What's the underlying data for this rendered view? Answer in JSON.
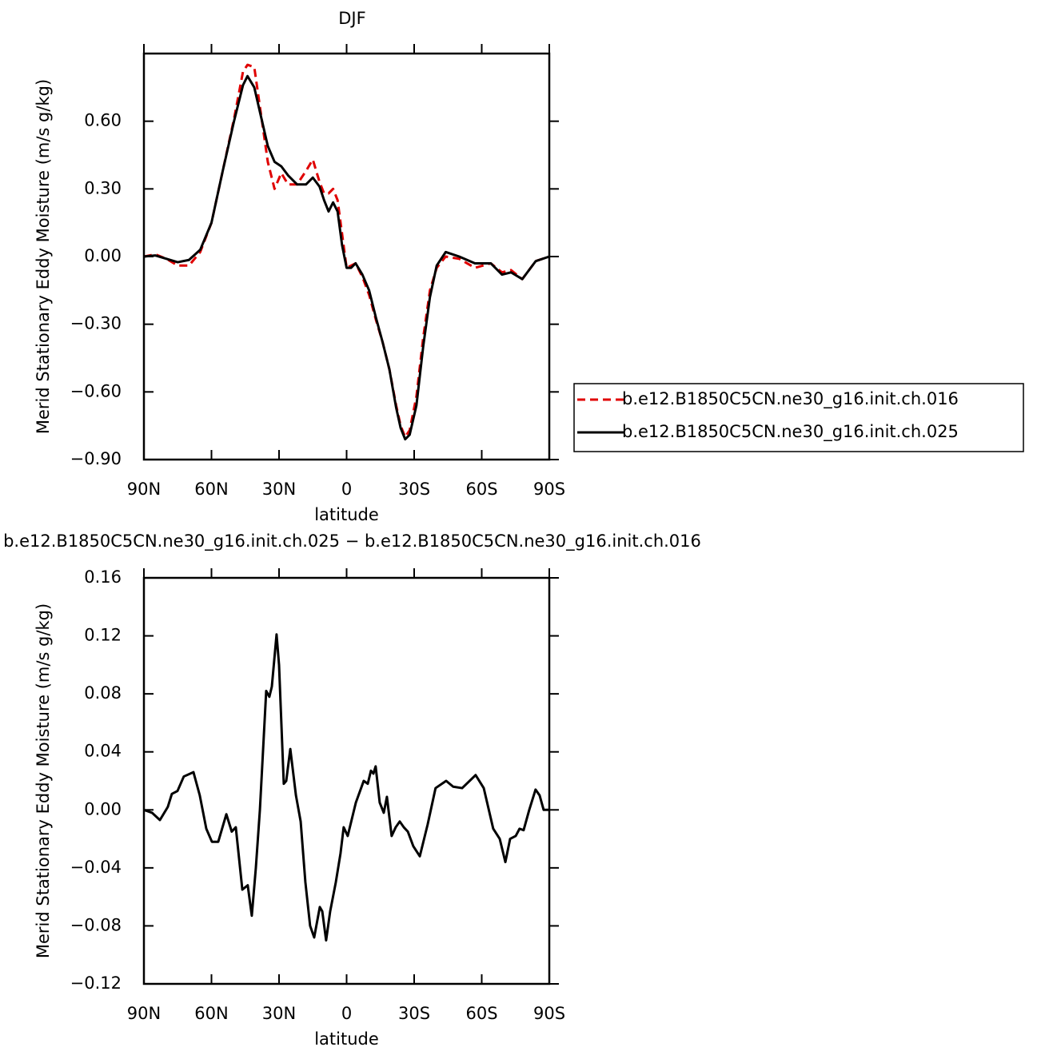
{
  "chart_data": [
    {
      "type": "line",
      "title": "DJF",
      "xlabel": "latitude",
      "ylabel": "Merid Stationary Eddy Moisture (m/s g/kg)",
      "x": [
        90,
        85,
        80,
        75,
        70,
        65,
        60,
        55,
        50,
        46,
        44,
        41,
        38,
        35,
        32,
        29,
        26,
        22,
        18,
        15,
        12,
        10,
        8,
        6,
        4,
        2,
        0,
        -2,
        -4,
        -7,
        -10,
        -13,
        -16,
        -19,
        -22,
        -24,
        -26,
        -28,
        -31,
        -34,
        -37,
        -40,
        -44,
        -50,
        -57,
        -64,
        -69,
        -73,
        -78,
        -84,
        -90
      ],
      "series": [
        {
          "name": "b.e12.B1850C5CN.ne30_g16.init.ch.016",
          "color": "#e00000",
          "line_style": "dashed",
          "values": [
            0.0,
            0.01,
            -0.01,
            -0.04,
            -0.04,
            0.02,
            0.15,
            0.38,
            0.61,
            0.82,
            0.85,
            0.84,
            0.63,
            0.42,
            0.3,
            0.37,
            0.32,
            0.32,
            0.38,
            0.43,
            0.33,
            0.28,
            0.28,
            0.3,
            0.25,
            0.1,
            -0.05,
            -0.04,
            -0.03,
            -0.09,
            -0.17,
            -0.28,
            -0.38,
            -0.5,
            -0.66,
            -0.75,
            -0.8,
            -0.77,
            -0.62,
            -0.36,
            -0.15,
            -0.05,
            0.0,
            -0.01,
            -0.05,
            -0.03,
            -0.07,
            -0.06,
            -0.1,
            -0.02,
            0.0
          ]
        },
        {
          "name": "b.e12.B1850C5CN.ne30_g16.init.ch.025",
          "color": "#000000",
          "line_style": "solid",
          "values": [
            0.0,
            0.005,
            -0.01,
            -0.025,
            -0.015,
            0.03,
            0.15,
            0.38,
            0.6,
            0.76,
            0.8,
            0.75,
            0.62,
            0.49,
            0.42,
            0.4,
            0.36,
            0.32,
            0.32,
            0.35,
            0.31,
            0.25,
            0.2,
            0.24,
            0.2,
            0.05,
            -0.05,
            -0.05,
            -0.03,
            -0.08,
            -0.15,
            -0.27,
            -0.38,
            -0.5,
            -0.67,
            -0.76,
            -0.81,
            -0.79,
            -0.66,
            -0.4,
            -0.18,
            -0.04,
            0.02,
            0.0,
            -0.03,
            -0.03,
            -0.08,
            -0.07,
            -0.1,
            -0.02,
            0.0
          ]
        }
      ],
      "xlim": [
        90,
        -90
      ],
      "xticks": [
        {
          "value": 90,
          "label": "90N"
        },
        {
          "value": 60,
          "label": "60N"
        },
        {
          "value": 30,
          "label": "30N"
        },
        0,
        {
          "value": -30,
          "label": "30S"
        },
        {
          "value": -60,
          "label": "60S"
        },
        {
          "value": -90,
          "label": "90S"
        }
      ],
      "ylim": [
        -0.9,
        0.9
      ],
      "yticks": [
        {
          "value": -0.9,
          "label": "−0.90"
        },
        {
          "value": -0.6,
          "label": "−0.60"
        },
        {
          "value": -0.3,
          "label": "−0.30"
        },
        {
          "value": 0,
          "label": "0.00"
        },
        {
          "value": 0.3,
          "label": "0.30"
        },
        {
          "value": 0.6,
          "label": "0.60"
        }
      ],
      "legend": "right"
    },
    {
      "type": "line",
      "title": "b.e12.B1850C5CN.ne30_g16.init.ch.025 − b.e12.B1850C5CN.ne30_g16.init.ch.016",
      "xlabel": "latitude",
      "ylabel": "Merid Stationary Eddy Moisture (m/s g/kg)",
      "x": [
        90,
        86.4,
        82.9,
        79.4,
        77.6,
        75.1,
        72.3,
        68,
        65.2,
        62.3,
        59.8,
        57,
        53.4,
        51,
        49.2,
        46.3,
        43.9,
        42.1,
        40.3,
        38.5,
        35.7,
        34.3,
        33.2,
        31.1,
        30,
        27.9,
        26.8,
        25,
        22.5,
        20.4,
        18.3,
        16.2,
        14.4,
        11.9,
        10.8,
        9.1,
        7.3,
        4.8,
        2.7,
        1.3,
        -0.5,
        -4.1,
        -7.6,
        -9.4,
        -10.8,
        -11.9,
        -12.9,
        -14.7,
        -16.5,
        -17.9,
        -20,
        -21.8,
        -23.6,
        -25.4,
        -27.2,
        -29.6,
        -32.5,
        -36,
        -39.5,
        -44.2,
        -47.3,
        -51.3,
        -57.3,
        -60.9,
        -65.1,
        -68,
        -70.5,
        -72.6,
        -75.1,
        -76.8,
        -78.6,
        -81.1,
        -83.9,
        -85.7,
        -87.5,
        -90
      ],
      "values": [
        0.0,
        -0.002,
        -0.007,
        0.002,
        0.011,
        0.013,
        0.023,
        0.026,
        0.01,
        -0.013,
        -0.022,
        -0.022,
        -0.003,
        -0.015,
        -0.012,
        -0.055,
        -0.052,
        -0.073,
        -0.04,
        0.0,
        0.082,
        0.078,
        0.085,
        0.121,
        0.1,
        0.018,
        0.02,
        0.042,
        0.01,
        -0.008,
        -0.05,
        -0.08,
        -0.088,
        -0.067,
        -0.07,
        -0.09,
        -0.07,
        -0.05,
        -0.03,
        -0.012,
        -0.018,
        0.005,
        0.02,
        0.018,
        0.027,
        0.025,
        0.03,
        0.005,
        -0.002,
        0.009,
        -0.018,
        -0.012,
        -0.008,
        -0.012,
        -0.015,
        -0.025,
        -0.032,
        -0.01,
        0.015,
        0.02,
        0.016,
        0.015,
        0.024,
        0.015,
        -0.013,
        -0.02,
        -0.036,
        -0.02,
        -0.018,
        -0.013,
        -0.014,
        0.0,
        0.014,
        0.01,
        0.0,
        0.0
      ],
      "color": "#000000",
      "xlim": [
        90,
        -90
      ],
      "xticks": [
        {
          "value": 90,
          "label": "90N"
        },
        {
          "value": 60,
          "label": "60N"
        },
        {
          "value": 30,
          "label": "30N"
        },
        0,
        {
          "value": -30,
          "label": "30S"
        },
        {
          "value": -60,
          "label": "60S"
        },
        {
          "value": -90,
          "label": "90S"
        }
      ],
      "ylim": [
        -0.12,
        0.16
      ],
      "yticks": [
        {
          "value": -0.12,
          "label": "−0.12"
        },
        {
          "value": -0.08,
          "label": "−0.08"
        },
        {
          "value": -0.04,
          "label": "−0.04"
        },
        {
          "value": 0,
          "label": "0.00"
        },
        {
          "value": 0.04,
          "label": "0.04"
        },
        {
          "value": 0.08,
          "label": "0.08"
        },
        {
          "value": 0.12,
          "label": "0.12"
        },
        {
          "value": 0.16,
          "label": "0.16"
        }
      ]
    }
  ]
}
